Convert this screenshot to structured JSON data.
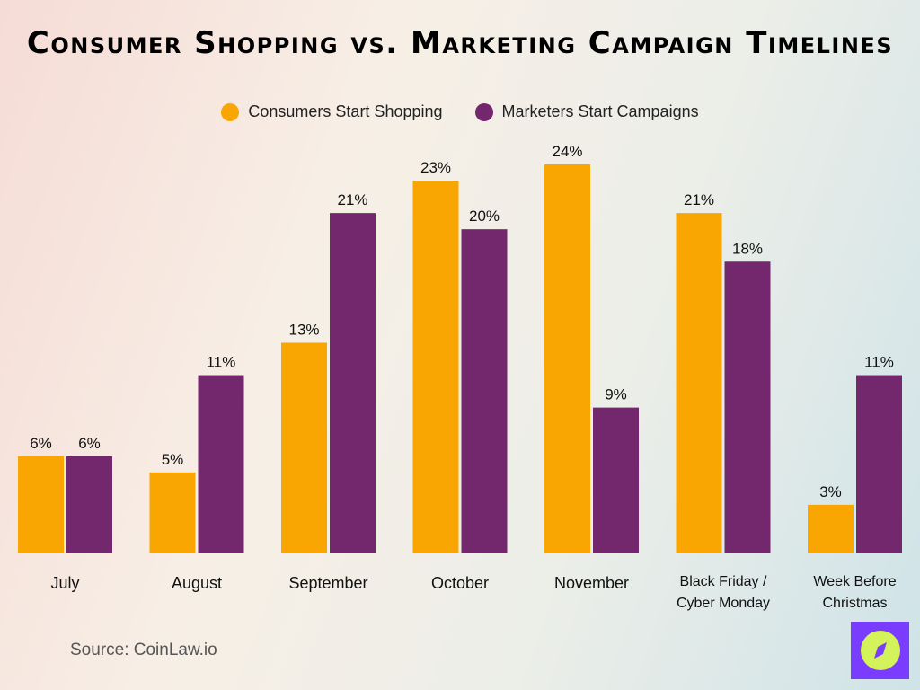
{
  "chart_data": {
    "type": "bar",
    "title": "Consumer Shopping vs. Marketing Campaign Timelines",
    "categories": [
      "July",
      "August",
      "September",
      "October",
      "November",
      "Black Friday / Cyber Monday",
      "Week Before Christmas"
    ],
    "category_lines": [
      [
        "July"
      ],
      [
        "August"
      ],
      [
        "September"
      ],
      [
        "October"
      ],
      [
        "November"
      ],
      [
        "Black Friday /",
        "Cyber Monday"
      ],
      [
        "Week Before",
        "Christmas"
      ]
    ],
    "series": [
      {
        "name": "Consumers Start Shopping",
        "color": "#f9a603",
        "values": [
          6,
          5,
          13,
          23,
          24,
          21,
          3
        ]
      },
      {
        "name": "Marketers Start Campaigns",
        "color": "#73276c",
        "values": [
          6,
          11,
          21,
          20,
          9,
          18,
          11
        ]
      }
    ],
    "value_suffix": "%",
    "ylim": [
      0,
      24
    ],
    "grid": false,
    "legend": "top-center"
  },
  "source": "Source: CoinLaw.io",
  "logo": {
    "icon": "compass-icon",
    "bg": "#7a3cff",
    "fg": "#d4f25a"
  }
}
